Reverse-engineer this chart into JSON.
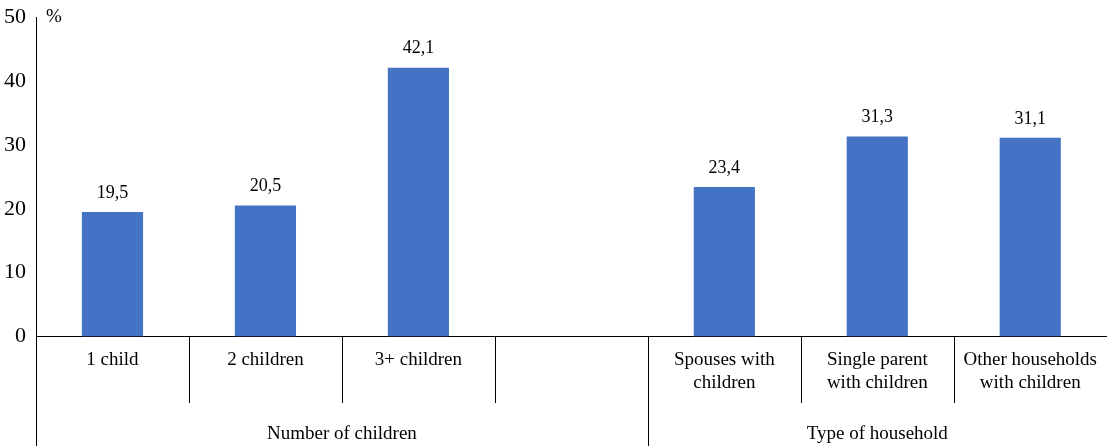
{
  "chart_data": {
    "type": "bar",
    "ylabel": "%",
    "categories": [
      "1 child",
      "2 children",
      "3+ children",
      null,
      "Spouses with children",
      "Single parent with children",
      "Other households with children"
    ],
    "values": [
      19.5,
      20.5,
      42.1,
      null,
      23.4,
      31.3,
      31.1
    ],
    "value_labels": [
      "19,5",
      "20,5",
      "42,1",
      null,
      "23,4",
      "31,3",
      "31,1"
    ],
    "color": "#4472c4",
    "ylim": [
      0,
      50
    ],
    "yticks": [
      0,
      10,
      20,
      30,
      40,
      50
    ],
    "grid": false,
    "legend": false,
    "annotations": [
      "Number of children",
      "Type of household"
    ]
  }
}
